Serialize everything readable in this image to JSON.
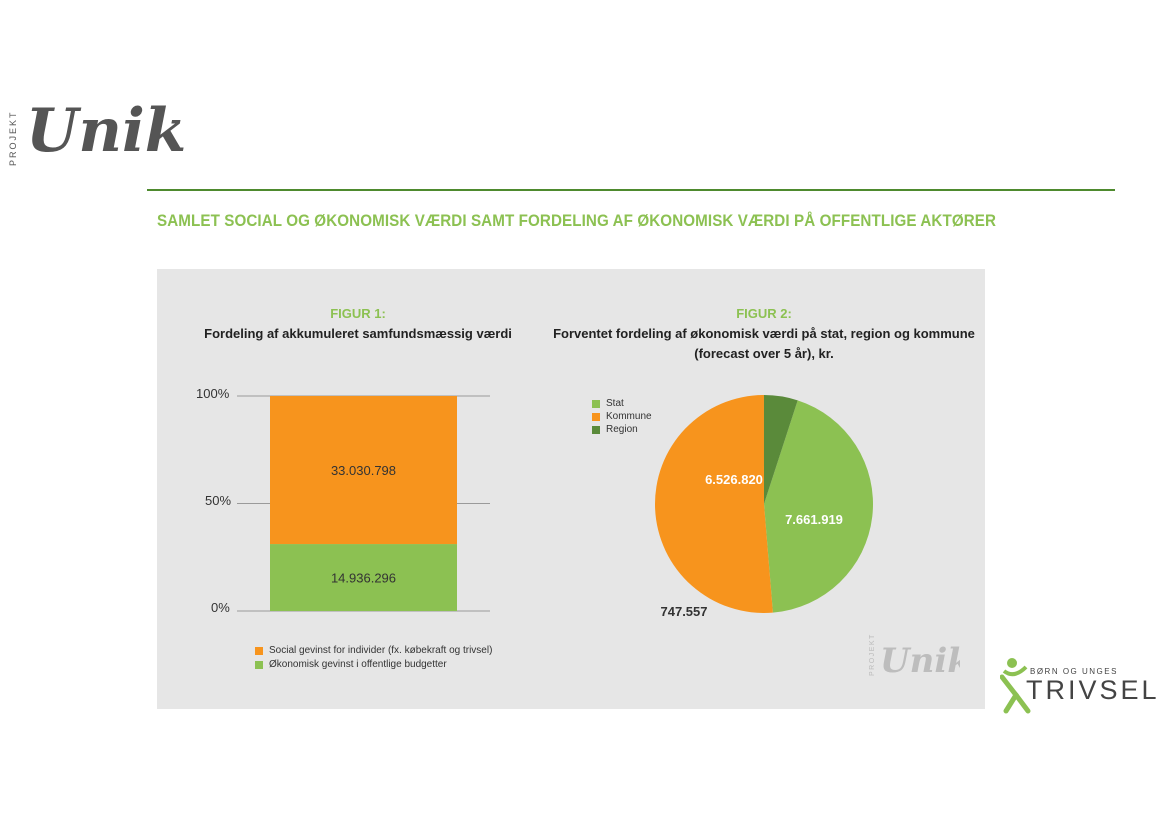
{
  "logo": {
    "prefix": "PROJEKT",
    "word": "Unik"
  },
  "header": {
    "title": "SAMLET SOCIAL OG ØKONOMISK VÆRDI SAMT FORDELING AF ØKONOMISK VÆRDI PÅ OFFENTLIGE AKTØRER"
  },
  "colors": {
    "green": "#8cc152",
    "orange": "#f7941d",
    "dark_green": "#5a8a3a",
    "panel": "#e6e6e6"
  },
  "figure1": {
    "label": "FIGUR 1:",
    "subtitle": "Fordeling af akkumuleret samfundsmæssig værdi",
    "yticks": [
      "100%",
      "50%",
      "0%"
    ],
    "legend": [
      "Social gevinst for individer (fx. købekraft og trivsel)",
      "Økonomisk gevinst i offentlige budgetter"
    ]
  },
  "figure2": {
    "label": "FIGUR 2:",
    "subtitle_line1": "Forventet fordeling af økonomisk værdi på stat, region og kommune",
    "subtitle_line2": "(forecast over 5 år), kr.",
    "legend": [
      "Stat",
      "Kommune",
      "Region"
    ]
  },
  "chart_data": [
    {
      "type": "bar",
      "stacked": "percent",
      "categories": [
        ""
      ],
      "series": [
        {
          "name": "Økonomisk gevinst i offentlige budgetter",
          "values": [
            14936296
          ],
          "label": "14.936.296",
          "color": "#8cc152"
        },
        {
          "name": "Social gevinst for individer (fx. købekraft og trivsel)",
          "values": [
            33030798
          ],
          "label": "33.030.798",
          "color": "#f7941d"
        }
      ],
      "ylim": [
        0,
        100
      ],
      "grid": true,
      "legend": "bottom"
    },
    {
      "type": "pie",
      "slices": [
        {
          "name": "Stat",
          "value": 6526820,
          "label": "6.526.820",
          "color": "#8cc152"
        },
        {
          "name": "Kommune",
          "value": 7661919,
          "label": "7.661.919",
          "color": "#f7941d"
        },
        {
          "name": "Region",
          "value": 747557,
          "label": "747.557",
          "color": "#5a8a3a"
        }
      ],
      "legend": "top-left"
    }
  ],
  "watermark": {
    "prefix": "PROJEKT",
    "word": "Unik"
  },
  "partner_logo": {
    "line1": "BØRN OG UNGES",
    "line2": "TRIVSEL"
  }
}
